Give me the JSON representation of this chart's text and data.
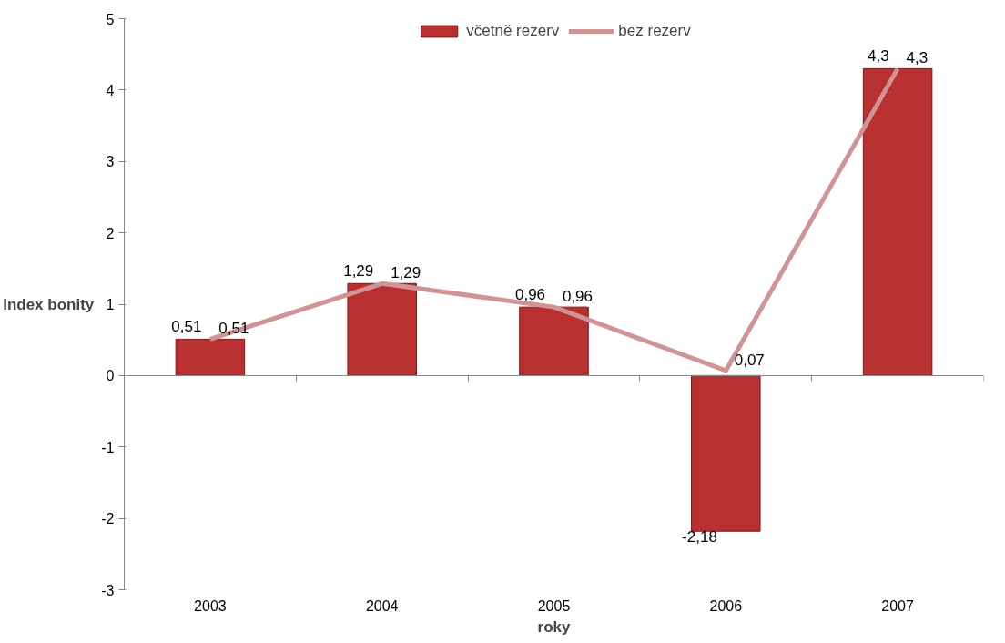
{
  "chart_data": {
    "type": "bar",
    "xlabel": "roky",
    "ylabel": "Index bonity",
    "categories": [
      "2003",
      "2004",
      "2005",
      "2006",
      "2007"
    ],
    "series": [
      {
        "name": "včetně rezerv",
        "type": "bar",
        "color": "#b83030",
        "values": [
          0.51,
          1.29,
          0.96,
          -2.18,
          4.3
        ],
        "value_labels": [
          "0,51",
          "1,29",
          "0,96",
          "-2,18",
          "4,3"
        ]
      },
      {
        "name": "bez rezerv",
        "type": "line",
        "color": "#d09494",
        "values": [
          0.51,
          1.29,
          0.96,
          0.07,
          4.3
        ],
        "value_labels": [
          "0,51",
          "1,29",
          "0,96",
          "0,07",
          "4,3"
        ]
      }
    ],
    "ylim": [
      -3,
      5
    ],
    "yticks": [
      -3,
      -2,
      -1,
      0,
      1,
      2,
      3,
      4,
      5
    ],
    "legend": "top",
    "marker": "none",
    "line_style": "solid"
  }
}
